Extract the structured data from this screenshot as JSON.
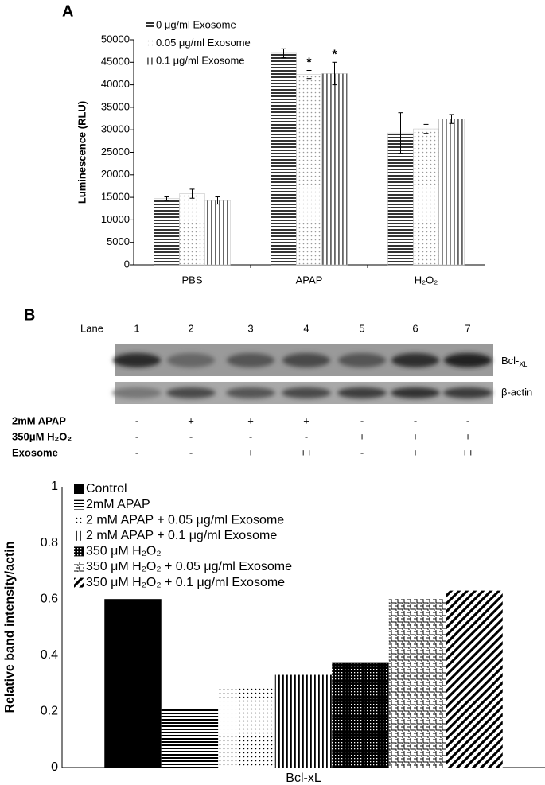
{
  "chart_data": [
    {
      "type": "bar",
      "title": "A",
      "ylabel": "Luminescence (RLU)",
      "categories": [
        "PBS",
        "APAP",
        "H₂O₂"
      ],
      "series": [
        {
          "name": "0 μg/ml Exosome",
          "color": "#333333",
          "pattern": "hstripe",
          "values": [
            14700,
            47000,
            29300
          ],
          "errors": [
            400,
            1000,
            4500
          ]
        },
        {
          "name": "0.05 μg/ml Exosome",
          "color": "#999999",
          "pattern": "dots",
          "values": [
            15800,
            42300,
            30200
          ],
          "errors": [
            1000,
            900,
            1000
          ]
        },
        {
          "name": "0.1 μg/ml Exosome",
          "color": "#666666",
          "pattern": "vstripe",
          "values": [
            14300,
            42500,
            32400
          ],
          "errors": [
            800,
            2500,
            1000
          ]
        }
      ],
      "annotations": [
        {
          "text": "*",
          "series": 1,
          "category": 1
        },
        {
          "text": "*",
          "series": 2,
          "category": 1
        }
      ],
      "ylim": [
        0,
        50000
      ],
      "yticks": [
        0,
        5000,
        10000,
        15000,
        20000,
        25000,
        30000,
        35000,
        40000,
        45000,
        50000
      ],
      "grid": false
    },
    {
      "type": "bar",
      "ylabel": "Relative band intensity/actin",
      "categories": [
        "Bcl-xL"
      ],
      "series": [
        {
          "name": "Control",
          "color": "#000000",
          "pattern": "solid",
          "values": [
            0.6
          ]
        },
        {
          "name": "2mM APAP",
          "color": "#000000",
          "pattern": "hstripe",
          "values": [
            0.21
          ]
        },
        {
          "name": "2 mM APAP + 0.05 μg/ml Exosome",
          "color": "#000000",
          "pattern": "dots",
          "values": [
            0.29
          ]
        },
        {
          "name": "2 mM APAP + 0.1 μg/ml Exosome",
          "color": "#000000",
          "pattern": "vstripe",
          "values": [
            0.33
          ]
        },
        {
          "name": "350 μM H₂O₂",
          "color": "#000000",
          "pattern": "checker",
          "values": [
            0.375
          ]
        },
        {
          "name": "350 μM H₂O₂ + 0.05 μg/ml Exosome",
          "color": "#000000",
          "pattern": "weave",
          "values": [
            0.6
          ]
        },
        {
          "name": "350 μM H₂O₂ + 0.1 μg/ml Exosome",
          "color": "#000000",
          "pattern": "diagonal",
          "values": [
            0.63
          ]
        }
      ],
      "ylim": [
        0,
        1
      ],
      "yticks": [
        0,
        0.2,
        0.4,
        0.6,
        0.8,
        1
      ],
      "grid": false
    }
  ],
  "blot": {
    "panel_label": "B",
    "lane_label": "Lane",
    "lanes": [
      1,
      2,
      3,
      4,
      5,
      6,
      7
    ],
    "protein_label": {
      "main": "Bcl-",
      "sub": "XL"
    },
    "control_label": "β-actin",
    "treatments": [
      {
        "label": "2mM APAP",
        "marks": [
          "-",
          "+",
          "+",
          "+",
          "-",
          "-",
          "-"
        ]
      },
      {
        "label": "350μM H₂O₂",
        "marks": [
          "-",
          "-",
          "-",
          "-",
          "+",
          "+",
          "+"
        ]
      },
      {
        "label": "Exosome",
        "marks": [
          "-",
          "-",
          "+",
          "++",
          "-",
          "+",
          "++"
        ]
      }
    ]
  }
}
